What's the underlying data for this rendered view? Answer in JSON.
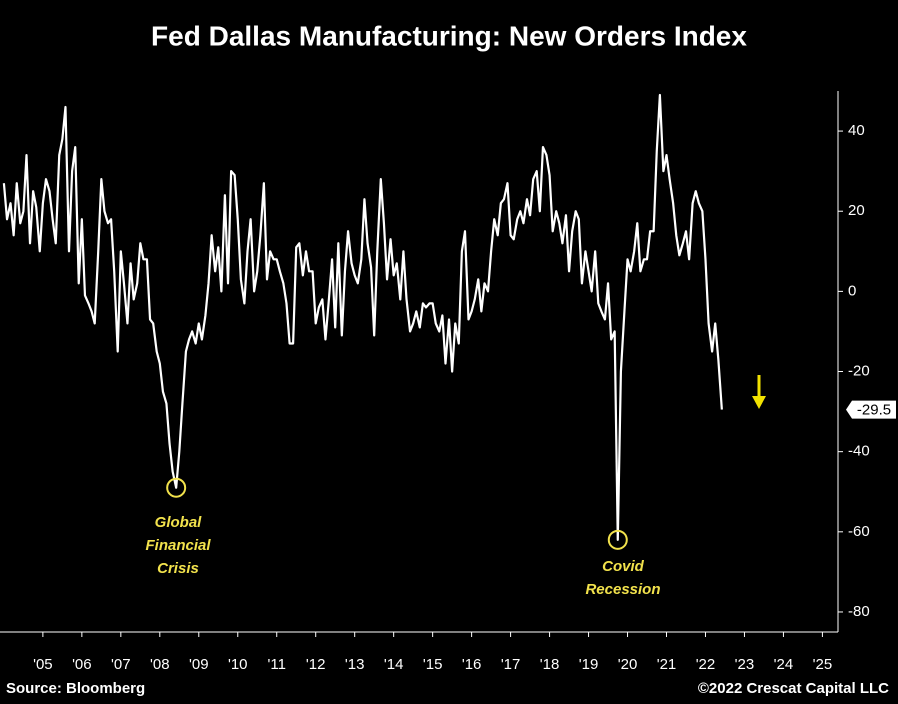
{
  "chart_data": {
    "type": "line",
    "title": "Fed Dallas Manufacturing: New Orders Index",
    "source": "Source: Bloomberg",
    "copyright": "©2022 Crescat Capital LLC",
    "xlim": [
      2004.4,
      2025.9
    ],
    "xticks": [
      {
        "value": 2005.5,
        "label": "'05"
      },
      {
        "value": 2006.5,
        "label": "'06"
      },
      {
        "value": 2007.5,
        "label": "'07"
      },
      {
        "value": 2008.5,
        "label": "'08"
      },
      {
        "value": 2009.5,
        "label": "'09"
      },
      {
        "value": 2010.5,
        "label": "'10"
      },
      {
        "value": 2011.5,
        "label": "'11"
      },
      {
        "value": 2012.5,
        "label": "'12"
      },
      {
        "value": 2013.5,
        "label": "'13"
      },
      {
        "value": 2014.5,
        "label": "'14"
      },
      {
        "value": 2015.5,
        "label": "'15"
      },
      {
        "value": 2016.5,
        "label": "'16"
      },
      {
        "value": 2017.5,
        "label": "'17"
      },
      {
        "value": 2018.5,
        "label": "'18"
      },
      {
        "value": 2019.5,
        "label": "'19"
      },
      {
        "value": 2020.5,
        "label": "'20"
      },
      {
        "value": 2021.5,
        "label": "'21"
      },
      {
        "value": 2022.5,
        "label": "'22"
      },
      {
        "value": 2023.5,
        "label": "'23"
      },
      {
        "value": 2024.5,
        "label": "'24"
      },
      {
        "value": 2025.5,
        "label": "'25"
      }
    ],
    "ylim": [
      -85,
      50
    ],
    "yticks": [
      40,
      20,
      0,
      -20,
      -40,
      -60,
      -80
    ],
    "annotations": [
      {
        "lines": [
          "Global",
          "Financial",
          "Crisis"
        ],
        "color": "#f2e24c"
      },
      {
        "lines": [
          "Covid",
          "Recession"
        ],
        "color": "#f2e24c"
      }
    ],
    "x": [
      2004.5,
      2004.58,
      2004.67,
      2004.75,
      2004.83,
      2004.92,
      2005,
      2005.08,
      2005.17,
      2005.25,
      2005.33,
      2005.42,
      2005.5,
      2005.58,
      2005.67,
      2005.75,
      2005.83,
      2005.92,
      2006,
      2006.08,
      2006.17,
      2006.25,
      2006.33,
      2006.42,
      2006.5,
      2006.58,
      2006.67,
      2006.75,
      2006.83,
      2006.92,
      2007,
      2007.08,
      2007.17,
      2007.25,
      2007.33,
      2007.42,
      2007.5,
      2007.58,
      2007.67,
      2007.75,
      2007.83,
      2007.92,
      2008,
      2008.08,
      2008.17,
      2008.25,
      2008.33,
      2008.42,
      2008.5,
      2008.58,
      2008.67,
      2008.75,
      2008.83,
      2008.92,
      2009,
      2009.08,
      2009.17,
      2009.25,
      2009.33,
      2009.42,
      2009.5,
      2009.58,
      2009.67,
      2009.75,
      2009.83,
      2009.92,
      2010,
      2010.08,
      2010.17,
      2010.25,
      2010.33,
      2010.42,
      2010.5,
      2010.58,
      2010.67,
      2010.75,
      2010.83,
      2010.92,
      2011,
      2011.08,
      2011.17,
      2011.25,
      2011.33,
      2011.42,
      2011.5,
      2011.58,
      2011.67,
      2011.75,
      2011.83,
      2011.92,
      2012,
      2012.08,
      2012.17,
      2012.25,
      2012.33,
      2012.42,
      2012.5,
      2012.58,
      2012.67,
      2012.75,
      2012.83,
      2012.92,
      2013,
      2013.08,
      2013.17,
      2013.25,
      2013.33,
      2013.42,
      2013.5,
      2013.58,
      2013.67,
      2013.75,
      2013.83,
      2013.92,
      2014,
      2014.08,
      2014.17,
      2014.25,
      2014.33,
      2014.42,
      2014.5,
      2014.58,
      2014.67,
      2014.75,
      2014.83,
      2014.92,
      2015,
      2015.08,
      2015.17,
      2015.25,
      2015.33,
      2015.42,
      2015.5,
      2015.58,
      2015.67,
      2015.75,
      2015.83,
      2015.92,
      2016,
      2016.08,
      2016.17,
      2016.25,
      2016.33,
      2016.42,
      2016.5,
      2016.58,
      2016.67,
      2016.75,
      2016.83,
      2016.92,
      2017,
      2017.08,
      2017.17,
      2017.25,
      2017.33,
      2017.42,
      2017.5,
      2017.58,
      2017.67,
      2017.75,
      2017.83,
      2017.92,
      2018,
      2018.08,
      2018.17,
      2018.25,
      2018.33,
      2018.42,
      2018.5,
      2018.58,
      2018.67,
      2018.75,
      2018.83,
      2018.92,
      2019,
      2019.08,
      2019.17,
      2019.25,
      2019.33,
      2019.42,
      2019.5,
      2019.58,
      2019.67,
      2019.75,
      2019.83,
      2019.92,
      2020,
      2020.08,
      2020.17,
      2020.25,
      2020.33,
      2020.42,
      2020.5,
      2020.58,
      2020.67,
      2020.75,
      2020.83,
      2020.92,
      2021,
      2021.08,
      2021.17,
      2021.25,
      2021.33,
      2021.42,
      2021.5,
      2021.58,
      2021.67,
      2021.75,
      2021.83,
      2021.92,
      2022,
      2022.08,
      2022.17,
      2022.25,
      2022.33,
      2022.42,
      2022.5,
      2022.58,
      2022.67,
      2022.75,
      2022.83,
      2022.92
    ],
    "series": [
      {
        "name": "New Orders Index",
        "color": "#ffffff",
        "values": [
          27,
          18,
          22,
          14,
          27,
          17,
          20,
          34,
          12,
          25,
          21,
          10,
          22,
          28,
          25,
          18,
          12,
          34,
          38,
          46,
          10,
          30,
          36,
          2,
          18,
          -1,
          -3,
          -5,
          -8,
          10,
          28,
          20,
          17,
          18,
          5,
          -15,
          10,
          2,
          -8,
          7,
          -2,
          2,
          12,
          8,
          8,
          -7,
          -8,
          -15,
          -18,
          -25,
          -28,
          -38,
          -45,
          -49,
          -40,
          -28,
          -15,
          -12,
          -10,
          -13,
          -8,
          -12,
          -6,
          2,
          14,
          5,
          11,
          0,
          24,
          2,
          30,
          29,
          18,
          3,
          -3,
          10,
          18,
          0,
          5,
          14,
          27,
          3,
          10,
          8,
          8,
          5,
          2,
          -3,
          -13,
          -13,
          11,
          12,
          4,
          10,
          5,
          5,
          -8,
          -4,
          -2,
          -12,
          -3,
          8,
          -9,
          12,
          -11,
          5,
          15,
          7,
          4,
          2,
          8,
          23,
          12,
          6,
          -11,
          10,
          28,
          17,
          3,
          13,
          4,
          7,
          -2,
          10,
          -2,
          -10,
          -8,
          -5,
          -9,
          -3,
          -4,
          -3,
          -3,
          -8,
          -10,
          -6,
          -18,
          -7,
          -20,
          -8,
          -13,
          10,
          15,
          -7,
          -5,
          -2,
          3,
          -5,
          2,
          0,
          10,
          18,
          14,
          22,
          23,
          27,
          14,
          13,
          18,
          20,
          17,
          23,
          19,
          28,
          30,
          20,
          36,
          34,
          29,
          15,
          20,
          17,
          12,
          19,
          5,
          15,
          20,
          18,
          2,
          10,
          5,
          0,
          10,
          -3,
          -5,
          -7,
          2,
          -12,
          -10,
          -62,
          -20,
          -5,
          8,
          5,
          10,
          17,
          5,
          8,
          8,
          15,
          15,
          35,
          49,
          30,
          34,
          28,
          22,
          14,
          9,
          12,
          15,
          8,
          22,
          25,
          22,
          20,
          8,
          -8,
          -15,
          -8,
          -17,
          -29.5
        ]
      }
    ]
  }
}
